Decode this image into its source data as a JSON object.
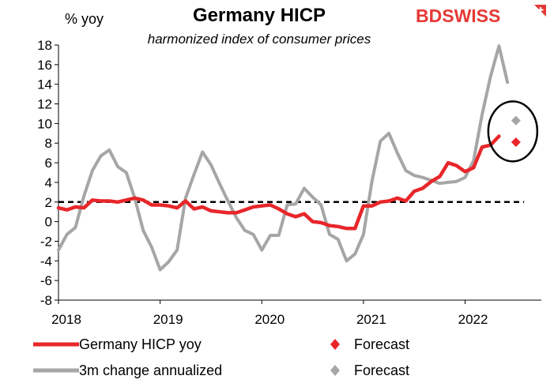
{
  "brand": {
    "logo": "BDSWISS",
    "logo_prefix": "BD",
    "logo_suffix": "SWISS",
    "color": "#e53935",
    "flag_icon": "swiss-cross-icon"
  },
  "colors": {
    "hicp": "#e8262a",
    "three_month": "#a6a6a6",
    "reference": "#000000",
    "forecast_circle": "#000000"
  },
  "chart_data": {
    "type": "line",
    "title": "Germany HICP",
    "subtitle": "harmonized index of consumer prices",
    "ylabel": "% yoy",
    "xlabel": "",
    "ylim": [
      -8,
      18
    ],
    "yticks": [
      18,
      16,
      14,
      12,
      10,
      8,
      6,
      4,
      2,
      0,
      -2,
      -4,
      -6,
      -8
    ],
    "xlim": [
      2018.0,
      2022.75
    ],
    "xticks": [
      {
        "label": "2018",
        "value": 2018.0
      },
      {
        "label": "2019",
        "value": 2019.0
      },
      {
        "label": "2020",
        "value": 2020.0
      },
      {
        "label": "2021",
        "value": 2021.0
      },
      {
        "label": "2022",
        "value": 2022.0
      }
    ],
    "reference_line": {
      "y": 2,
      "style": "dashed"
    },
    "series": [
      {
        "name": "Germany HICP yoy",
        "color": "#e8262a",
        "x": [
          2018.0,
          2018.0833,
          2018.1667,
          2018.25,
          2018.3333,
          2018.4167,
          2018.5,
          2018.5833,
          2018.6667,
          2018.75,
          2018.8333,
          2018.9167,
          2019.0,
          2019.0833,
          2019.1667,
          2019.25,
          2019.3333,
          2019.4167,
          2019.5,
          2019.5833,
          2019.6667,
          2019.75,
          2019.8333,
          2019.9167,
          2020.0,
          2020.0833,
          2020.1667,
          2020.25,
          2020.3333,
          2020.4167,
          2020.5,
          2020.5833,
          2020.6667,
          2020.75,
          2020.8333,
          2020.9167,
          2021.0,
          2021.0833,
          2021.1667,
          2021.25,
          2021.3333,
          2021.4167,
          2021.5,
          2021.5833,
          2021.6667,
          2021.75,
          2021.8333,
          2021.9167,
          2022.0,
          2022.0833,
          2022.1667,
          2022.25,
          2022.3333
        ],
        "values": [
          1.4,
          1.2,
          1.5,
          1.4,
          2.2,
          2.1,
          2.1,
          2.0,
          2.2,
          2.4,
          2.2,
          1.7,
          1.7,
          1.6,
          1.4,
          2.1,
          1.3,
          1.5,
          1.1,
          1.0,
          0.9,
          0.9,
          1.2,
          1.5,
          1.6,
          1.7,
          1.3,
          0.8,
          0.5,
          0.8,
          0.0,
          -0.1,
          -0.4,
          -0.5,
          -0.7,
          -0.7,
          1.6,
          1.6,
          2.0,
          2.1,
          2.4,
          2.1,
          3.1,
          3.4,
          4.1,
          4.6,
          6.0,
          5.7,
          5.1,
          5.5,
          7.6,
          7.8,
          8.7
        ]
      },
      {
        "name": "3m change annualized",
        "color": "#a6a6a6",
        "x": [
          2018.0,
          2018.0833,
          2018.1667,
          2018.25,
          2018.3333,
          2018.4167,
          2018.5,
          2018.5833,
          2018.6667,
          2018.75,
          2018.8333,
          2018.9167,
          2019.0,
          2019.0833,
          2019.1667,
          2019.25,
          2019.3333,
          2019.4167,
          2019.5,
          2019.5833,
          2019.6667,
          2019.75,
          2019.8333,
          2019.9167,
          2020.0,
          2020.0833,
          2020.1667,
          2020.25,
          2020.3333,
          2020.4167,
          2020.5,
          2020.5833,
          2020.6667,
          2020.75,
          2020.8333,
          2020.9167,
          2021.0,
          2021.0833,
          2021.1667,
          2021.25,
          2021.3333,
          2021.4167,
          2021.5,
          2021.5833,
          2021.6667,
          2021.75,
          2021.8333,
          2021.9167,
          2022.0,
          2022.0833,
          2022.1667,
          2022.25,
          2022.3333,
          2022.4167
        ],
        "values": [
          -2.9,
          -1.3,
          -0.6,
          2.6,
          5.2,
          6.7,
          7.3,
          5.6,
          5.0,
          2.4,
          -0.9,
          -2.6,
          -4.9,
          -4.1,
          -2.9,
          2.4,
          4.8,
          7.1,
          5.8,
          3.9,
          2.1,
          0.4,
          -0.9,
          -1.3,
          -2.9,
          -1.4,
          -1.4,
          1.7,
          1.8,
          3.4,
          2.5,
          1.7,
          -1.3,
          -1.8,
          -4.0,
          -3.3,
          -1.3,
          4.1,
          8.2,
          9.0,
          7.0,
          5.2,
          4.7,
          4.5,
          4.2,
          3.9,
          4.0,
          4.1,
          4.5,
          6.2,
          10.9,
          14.8,
          17.9,
          14.2
        ]
      }
    ],
    "forecasts": [
      {
        "name": "Forecast",
        "series": "Germany HICP yoy",
        "x": 2022.5,
        "value": 8.1,
        "color": "#e8262a",
        "marker": "diamond"
      },
      {
        "name": "Forecast",
        "series": "3m change annualized",
        "x": 2022.5,
        "value": 10.3,
        "color": "#a6a6a6",
        "marker": "diamond"
      }
    ],
    "annotation": {
      "type": "ellipse",
      "around": "forecasts",
      "color": "#000000"
    }
  },
  "legend": {
    "hicp_label": "Germany HICP yoy",
    "three_month_label": "3m change annualized",
    "forecast_red_label": "Forecast",
    "forecast_grey_label": "Forecast"
  }
}
